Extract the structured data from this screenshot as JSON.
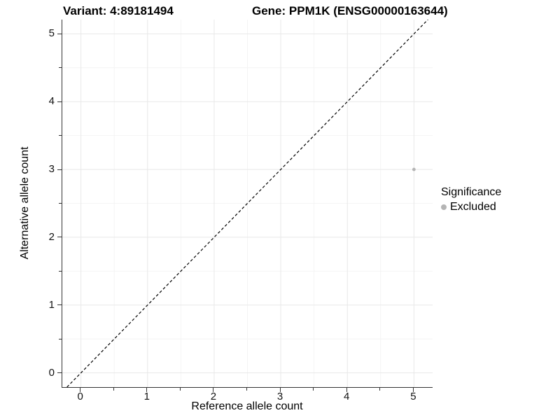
{
  "chart_data": {
    "type": "scatter",
    "title_left": "Variant: 4:89181494",
    "title_right": "Gene: PPM1K (ENSG00000163644)",
    "xlabel": "Reference allele count",
    "ylabel": "Alternative allele count",
    "xlim": [
      -0.28,
      5.28
    ],
    "ylim": [
      -0.21,
      5.21
    ],
    "x_major_ticks": [
      0,
      1,
      2,
      3,
      4,
      5
    ],
    "x_minor_ticks": [
      0.5,
      1.5,
      2.5,
      3.5,
      4.5
    ],
    "y_major_ticks": [
      0,
      1,
      2,
      3,
      4,
      5
    ],
    "y_minor_ticks": [
      0.5,
      1.5,
      2.5,
      3.5,
      4.5
    ],
    "x_tick_labels": [
      "0",
      "1",
      "2",
      "3",
      "4",
      "5"
    ],
    "y_tick_labels": [
      "0",
      "1",
      "2",
      "3",
      "4",
      "5"
    ],
    "grid": true,
    "series": [
      {
        "name": "Excluded",
        "points": [
          {
            "x": 5,
            "y": 3
          }
        ],
        "color": "#b4b4b4"
      }
    ],
    "reference_line": {
      "kind": "identity",
      "style": "dashed",
      "color": "#000000"
    },
    "legend": {
      "title": "Significance",
      "position": "right",
      "items": [
        {
          "label": "Excluded",
          "color": "#b4b4b4"
        }
      ]
    },
    "colors": {
      "grid_major": "#e8e8e8",
      "grid_minor": "#f4f4f4",
      "axis_line": "#333333",
      "background": "#ffffff"
    }
  }
}
